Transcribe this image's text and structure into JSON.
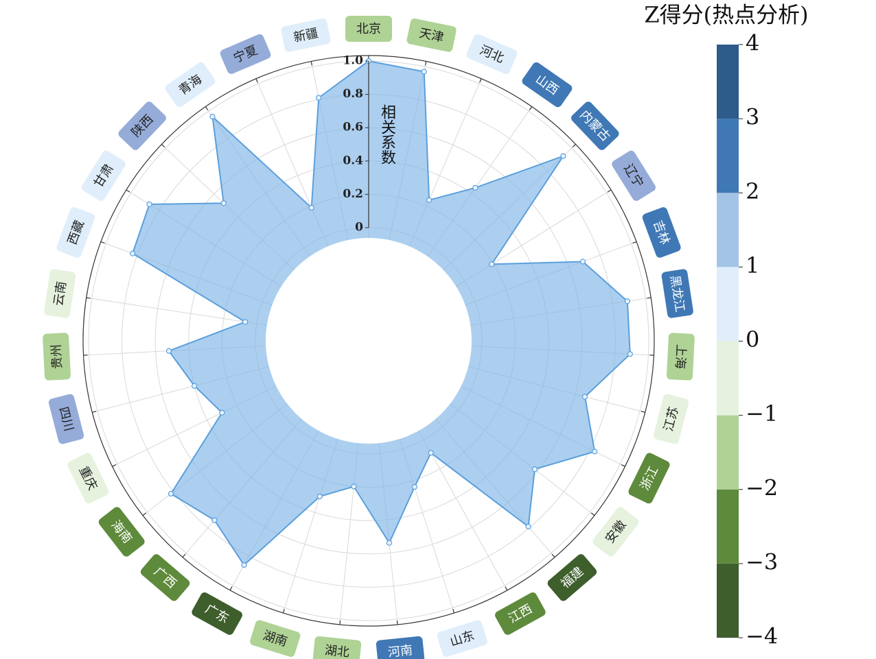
{
  "chart_data": {
    "type": "radar",
    "y_label": "相关系数",
    "categories": [
      "北京",
      "天津",
      "河北",
      "山西",
      "内蒙古",
      "辽宁",
      "吉林",
      "黑龙江",
      "上海",
      "江苏",
      "浙江",
      "安徽",
      "福建",
      "江西",
      "山东",
      "河南",
      "湖北",
      "湖南",
      "广东",
      "广西",
      "海南",
      "重庆",
      "四川",
      "贵州",
      "云南",
      "西藏",
      "甘肃",
      "陕西",
      "青海",
      "宁夏",
      "新疆"
    ],
    "values": [
      1.0,
      0.97,
      0.24,
      0.44,
      0.93,
      0.19,
      0.69,
      0.89,
      0.89,
      0.66,
      0.83,
      0.58,
      0.79,
      0.09,
      0.24,
      0.54,
      0.2,
      0.3,
      0.86,
      0.74,
      0.82,
      0.3,
      0.4,
      0.52,
      0.07,
      0.83,
      0.87,
      0.52,
      0.96,
      0.19,
      0.81
    ],
    "color": "#7fb6e8",
    "ylim": [
      0,
      1
    ],
    "yticks": [
      0,
      0.2,
      0.4,
      0.6,
      0.8,
      {
        "value": 1,
        "label": "1.0"
      }
    ],
    "grid": true,
    "label_colors": [
      "#afd295",
      "#afd295",
      "#dfeefa",
      "#3f78b5",
      "#3f78b5",
      "#95acd9",
      "#3f78b5",
      "#3f78b5",
      "#afd295",
      "#e6f2de",
      "#5e8a3c",
      "#e6f2de",
      "#3e5e2c",
      "#5e8a3c",
      "#dfeefa",
      "#3f78b5",
      "#afd295",
      "#afd295",
      "#3e5e2c",
      "#5e8a3c",
      "#5e8a3c",
      "#e6f2de",
      "#95acd9",
      "#afd295",
      "#e6f2de",
      "#dfeefa",
      "#dfeefa",
      "#95acd9",
      "#dfeefa",
      "#95acd9",
      "#dfeefa"
    ],
    "colorbar": {
      "title": "Z得分(热点分析)",
      "lim": [
        -4,
        4
      ],
      "ticks": [
        {
          "value": -4,
          "label": "−4"
        },
        {
          "value": -3,
          "label": "−3"
        },
        {
          "value": -2,
          "label": "−2"
        },
        {
          "value": -1,
          "label": "−1"
        },
        0,
        1,
        2,
        3,
        4
      ],
      "colors": [
        "#3e5e2c",
        "#5e8a3c",
        "#afd295",
        "#e6f2de",
        "#dfeefa",
        "#a4c4e6",
        "#3f78b5",
        "#2d5b8a"
      ]
    }
  }
}
